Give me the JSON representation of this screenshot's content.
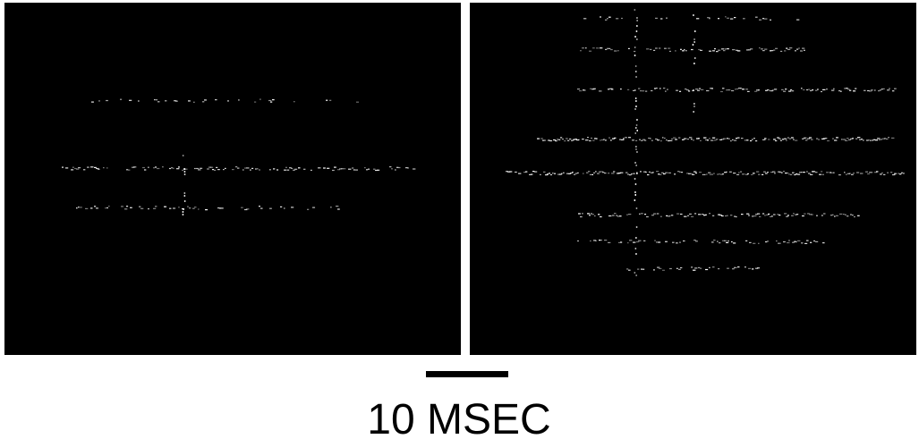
{
  "scale_bar": {
    "label": "10 MSEC"
  }
}
